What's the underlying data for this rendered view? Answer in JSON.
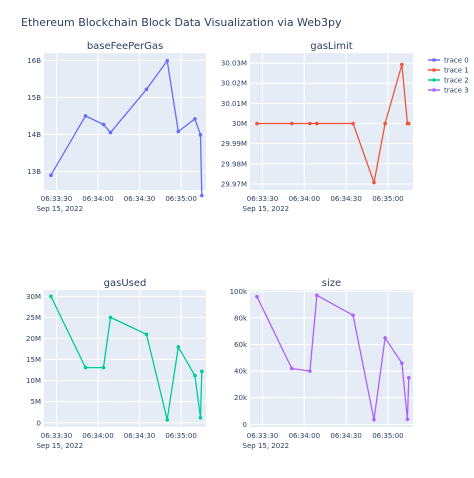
{
  "title": "Ethereum Blockchain Block Data Visualization via Web3py",
  "date_label": "Sep 15, 2022",
  "x_tick_labels": [
    "06:33:30",
    "06:34:00",
    "06:34:30",
    "06:35:00"
  ],
  "x_tick_seconds": [
    30,
    60,
    90,
    120
  ],
  "x_range_seconds": [
    21,
    138
  ],
  "legend": [
    {
      "name": "trace 0",
      "color": "#636efa"
    },
    {
      "name": "trace 1",
      "color": "#ef553b"
    },
    {
      "name": "trace 2",
      "color": "#00cc96"
    },
    {
      "name": "trace 3",
      "color": "#ab63fa"
    }
  ],
  "chart_data": [
    {
      "type": "line",
      "title": "baseFeePerGas",
      "series_name": "trace 0",
      "color": "#636efa",
      "x_seconds": [
        26,
        51,
        64,
        69,
        95,
        110,
        118,
        130,
        134,
        135
      ],
      "y": [
        12900000000.0,
        14500000000.0,
        14270000000.0,
        14050000000.0,
        15220000000.0,
        15990000000.0,
        14080000000.0,
        14420000000.0,
        13990000000.0,
        12350000000.0
      ],
      "ylim": [
        12500000000.0,
        16200000000.0
      ],
      "y_ticks": [
        13000000000.0,
        14000000000.0,
        15000000000.0,
        16000000000.0
      ],
      "y_tick_labels": [
        "13B",
        "14B",
        "15B",
        "16B"
      ]
    },
    {
      "type": "line",
      "title": "gasLimit",
      "series_name": "trace 1",
      "color": "#ef553b",
      "x_seconds": [
        26,
        51,
        64,
        69,
        95,
        110,
        118,
        130,
        134,
        135
      ],
      "y": [
        29999998,
        29999998,
        29999998,
        29999998,
        29999998,
        29970703,
        29999998,
        30029294,
        30000000,
        29999998
      ],
      "ylim": [
        29967000,
        30035000
      ],
      "y_ticks": [
        29970000,
        29980000,
        29990000,
        30000000,
        30010000,
        30020000,
        30030000
      ],
      "y_tick_labels": [
        "29.97M",
        "29.98M",
        "29.99M",
        "30M",
        "30.01M",
        "30.02M",
        "30.03M"
      ]
    },
    {
      "type": "line",
      "title": "gasUsed",
      "series_name": "trace 2",
      "color": "#00cc96",
      "x_seconds": [
        26,
        51,
        64,
        69,
        95,
        110,
        118,
        130,
        134,
        135
      ],
      "y": [
        30000000.0,
        13100000.0,
        13100000.0,
        25000000.0,
        21000000.0,
        700000.0,
        18000000.0,
        11200000.0,
        1200000.0,
        12200000.0
      ],
      "ylim": [
        -1000000.0,
        31500000.0
      ],
      "y_ticks": [
        0,
        5000000.0,
        10000000.0,
        15000000.0,
        20000000.0,
        25000000.0,
        30000000.0
      ],
      "y_tick_labels": [
        "0",
        "5M",
        "10M",
        "15M",
        "20M",
        "25M",
        "30M"
      ]
    },
    {
      "type": "line",
      "title": "size",
      "series_name": "trace 3",
      "color": "#ab63fa",
      "x_seconds": [
        26,
        51,
        64,
        69,
        95,
        110,
        118,
        130,
        134,
        135
      ],
      "y": [
        96000,
        42000,
        40000,
        97000,
        82000,
        3500,
        65000,
        46000,
        3800,
        35000
      ],
      "ylim": [
        -2000,
        101000
      ],
      "y_ticks": [
        0,
        20000,
        40000,
        60000,
        80000,
        100000
      ],
      "y_tick_labels": [
        "0",
        "20k",
        "40k",
        "60k",
        "80k",
        "100k"
      ]
    }
  ]
}
